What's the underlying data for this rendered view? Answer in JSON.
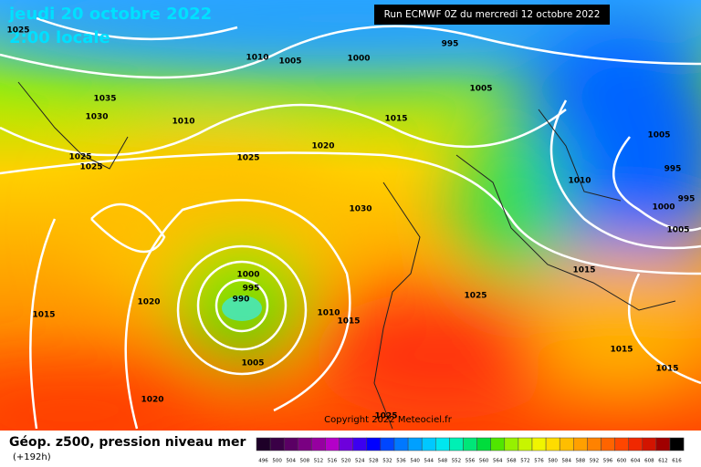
{
  "header": {
    "date": "jeudi 20 octobre 2022",
    "time": "2:00 locale",
    "run": "Run ECMWF 0Z du mercredi 12 octobre 2022"
  },
  "copyright": "Copyright 2022 Meteociel.fr",
  "footer": {
    "title": "Géop. z500, pression niveau mer",
    "lead": "(+192h)"
  },
  "isobar_labels": [
    1025,
    1010,
    1005,
    1000,
    995,
    1035,
    1030,
    1010,
    1015,
    1005,
    1020,
    1025,
    1025,
    1025,
    1005,
    995,
    1010,
    995,
    1000,
    1005,
    1030,
    1000,
    995,
    990,
    1020,
    1015,
    1010,
    1015,
    1025,
    1015,
    1015,
    1005,
    1015,
    1020,
    1025
  ],
  "scale": {
    "labels": [
      496,
      500,
      504,
      508,
      512,
      516,
      520,
      524,
      528,
      532,
      536,
      540,
      544,
      548,
      552,
      556,
      560,
      564,
      568,
      572,
      576,
      580,
      584,
      588,
      592,
      596,
      600,
      604,
      608,
      612,
      616
    ],
    "colors": [
      "#1e0028",
      "#3a0046",
      "#5a0064",
      "#7a0082",
      "#9600a0",
      "#b400c8",
      "#6e00dc",
      "#3c00f0",
      "#0000ff",
      "#0046ff",
      "#0078ff",
      "#00a0ff",
      "#00c8ff",
      "#00e6f0",
      "#00f0b4",
      "#00e678",
      "#00dc3c",
      "#50e600",
      "#96f000",
      "#c8f500",
      "#f0f500",
      "#ffdc00",
      "#ffbe00",
      "#ffa000",
      "#ff8200",
      "#ff6400",
      "#ff4600",
      "#f02800",
      "#d21400",
      "#a00000",
      "#000000"
    ]
  }
}
